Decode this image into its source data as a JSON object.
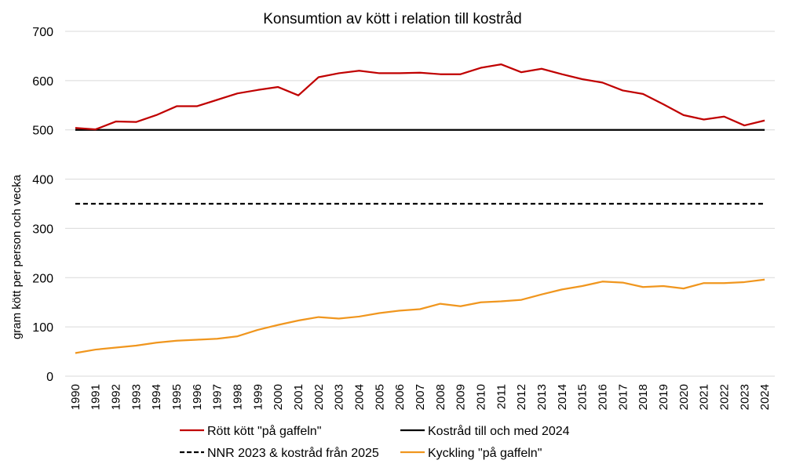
{
  "chart_data": {
    "type": "line",
    "title": "Konsumtion  av kött i relation till kostråd",
    "xlabel": "",
    "ylabel": "gram kött per person och vecka",
    "ylim": [
      0,
      700
    ],
    "yticks": [
      0,
      100,
      200,
      300,
      400,
      500,
      600,
      700
    ],
    "grid": true,
    "legend_position": "bottom",
    "categories": [
      "1990",
      "1991",
      "1992",
      "1993",
      "1994",
      "1995",
      "1996",
      "1997",
      "1998",
      "1999",
      "2000",
      "2001",
      "2002",
      "2003",
      "2004",
      "2005",
      "2006",
      "2007",
      "2008",
      "2009",
      "2010",
      "2011",
      "2012",
      "2013",
      "2014",
      "2015",
      "2016",
      "2017",
      "2018",
      "2019",
      "2020",
      "2021",
      "2022",
      "2023",
      "2024"
    ],
    "series": [
      {
        "name": "Rött kött \"på gaffeln\"",
        "color": "#c00000",
        "style": "solid",
        "values": [
          504,
          501,
          517,
          516,
          530,
          548,
          548,
          561,
          574,
          581,
          587,
          570,
          607,
          615,
          620,
          615,
          615,
          616,
          613,
          613,
          626,
          633,
          617,
          624,
          613,
          603,
          596,
          580,
          573,
          552,
          530,
          521,
          527,
          509,
          519
        ]
      },
      {
        "name": "Kostråd till och med 2024",
        "color": "#000000",
        "style": "solid",
        "values": [
          500,
          500,
          500,
          500,
          500,
          500,
          500,
          500,
          500,
          500,
          500,
          500,
          500,
          500,
          500,
          500,
          500,
          500,
          500,
          500,
          500,
          500,
          500,
          500,
          500,
          500,
          500,
          500,
          500,
          500,
          500,
          500,
          500,
          500,
          500
        ]
      },
      {
        "name": "NNR 2023 & kostråd från 2025",
        "color": "#000000",
        "style": "dashed",
        "values": [
          350,
          350,
          350,
          350,
          350,
          350,
          350,
          350,
          350,
          350,
          350,
          350,
          350,
          350,
          350,
          350,
          350,
          350,
          350,
          350,
          350,
          350,
          350,
          350,
          350,
          350,
          350,
          350,
          350,
          350,
          350,
          350,
          350,
          350,
          350
        ]
      },
      {
        "name": "Kyckling \"på gaffeln\"",
        "color": "#f0961e",
        "style": "solid",
        "values": [
          47,
          54,
          58,
          62,
          68,
          72,
          74,
          76,
          81,
          94,
          104,
          113,
          120,
          117,
          121,
          128,
          133,
          136,
          147,
          142,
          150,
          152,
          155,
          166,
          176,
          183,
          192,
          190,
          181,
          183,
          178,
          189,
          189,
          191,
          196
        ]
      }
    ]
  }
}
